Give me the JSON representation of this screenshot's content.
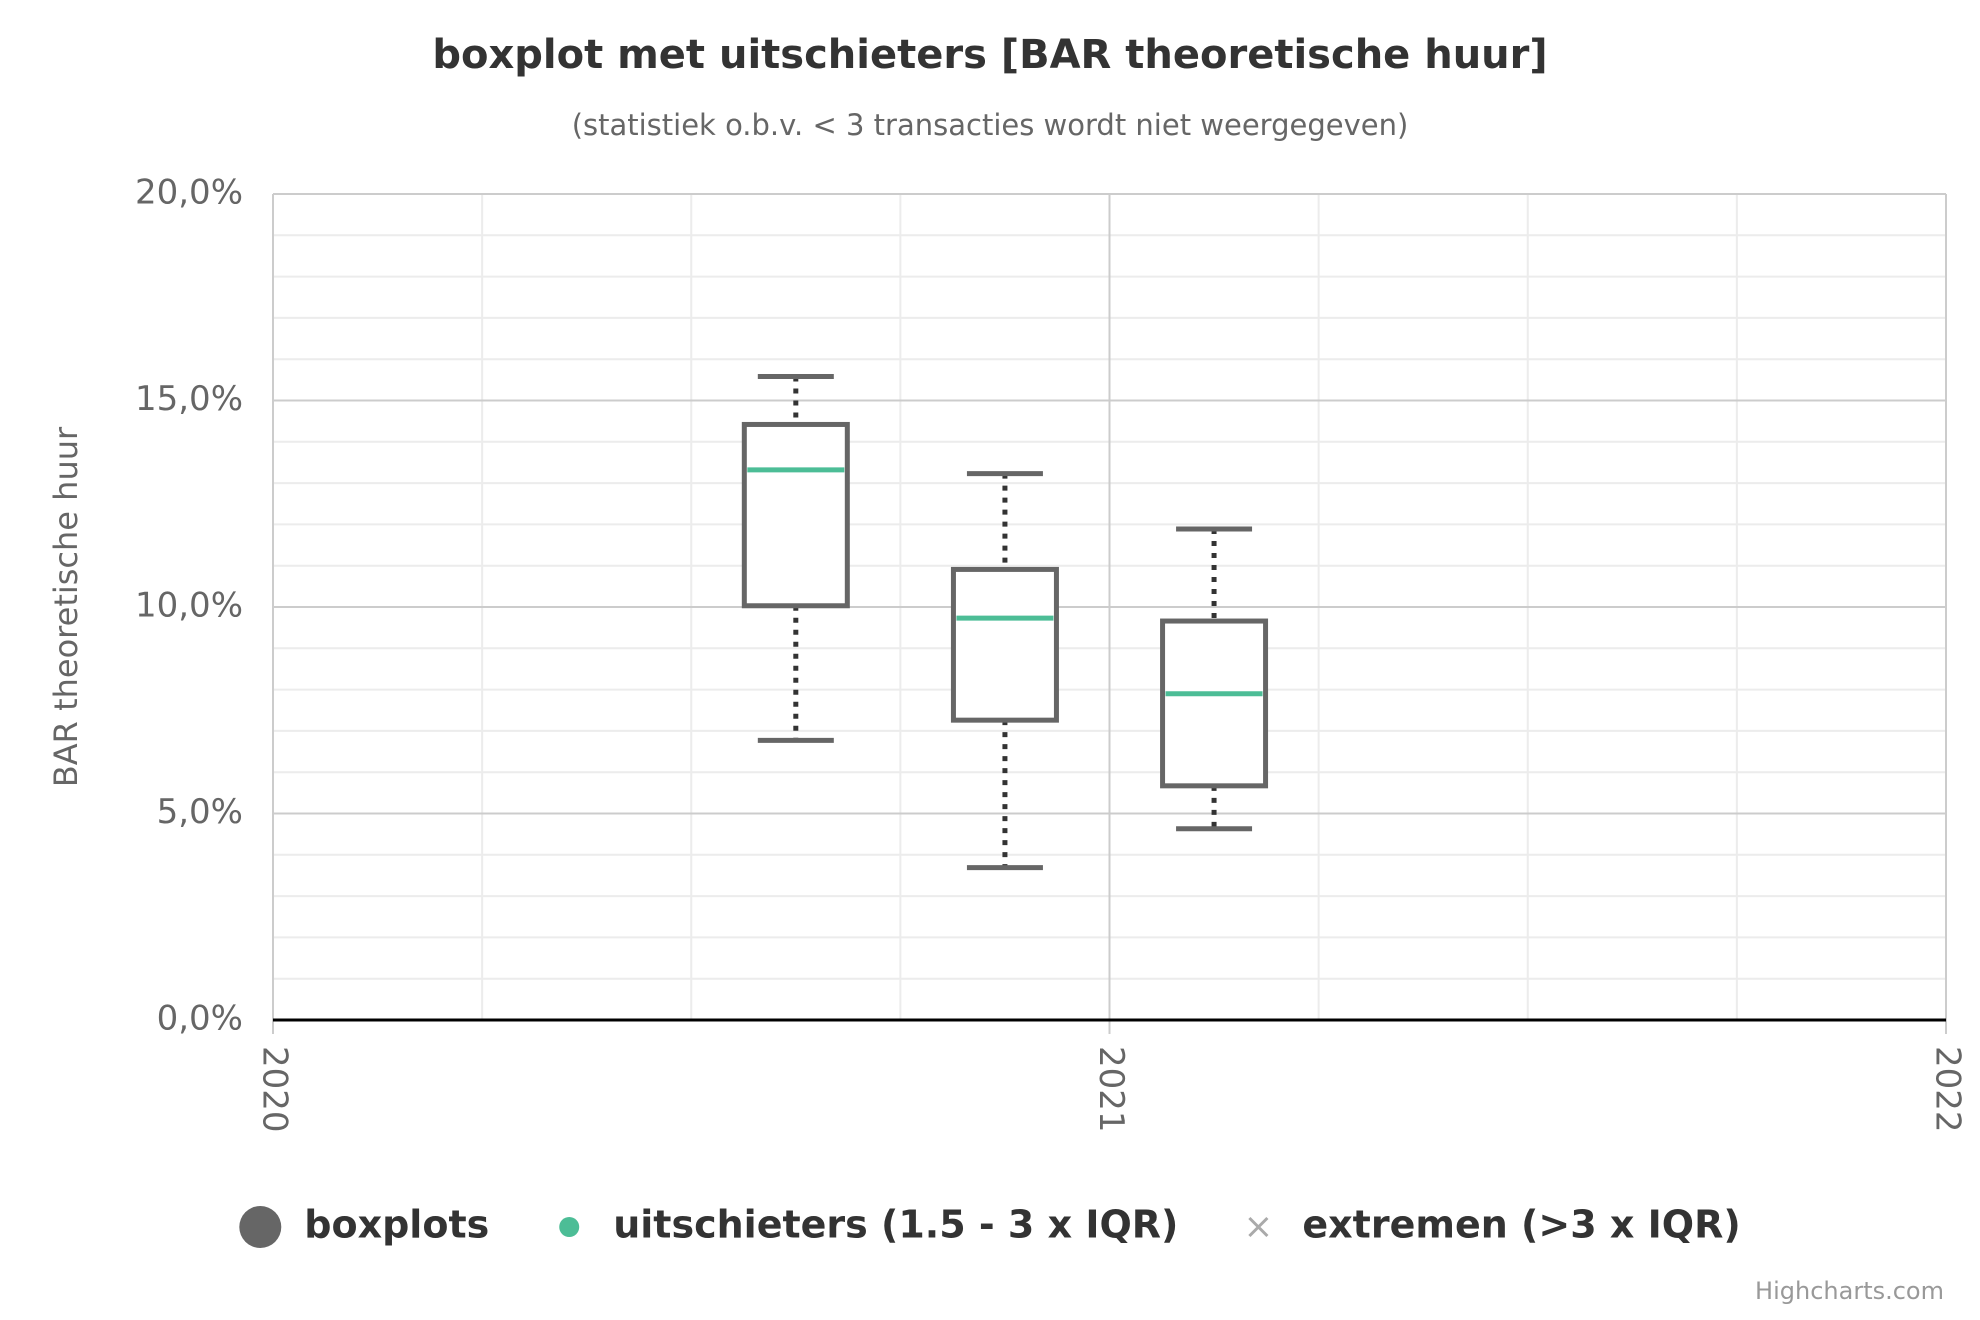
{
  "chart_data": {
    "type": "boxplot",
    "title": "boxplot met uitschieters [BAR theoretische huur]",
    "subtitle": "(statistiek o.b.v. < 3 transacties wordt niet weergegeven)",
    "y_label": "BAR theoretische huur",
    "credits": "Highcharts.com",
    "xlim": [
      2020,
      2022
    ],
    "xticks": [
      2020,
      2021,
      2022
    ],
    "xminorticks": [
      2020.25,
      2020.5,
      2020.75,
      2021.25,
      2021.5,
      2021.75
    ],
    "ylim": [
      0,
      20
    ],
    "yticks": [
      {
        "value": 0,
        "label": "0,0%"
      },
      {
        "value": 5,
        "label": "5,0%"
      },
      {
        "value": 10,
        "label": "10,0%"
      },
      {
        "value": 15,
        "label": "15,0%"
      },
      {
        "value": 20,
        "label": "20,0%"
      }
    ],
    "yminorticks": [
      1,
      2,
      3,
      4,
      6,
      7,
      8,
      9,
      11,
      12,
      13,
      14,
      16,
      17,
      18,
      19
    ],
    "grid": true,
    "legend_position": "bottom",
    "series": [
      {
        "name": "boxplots",
        "color": "#666666",
        "median_color": "#4cbd96",
        "marker": "circle",
        "x": [
          2020.625,
          2020.875,
          2021.125
        ],
        "low": [
          6.77,
          3.69,
          4.63
        ],
        "q1": [
          10.03,
          7.26,
          5.67
        ],
        "median": [
          13.32,
          9.73,
          7.9
        ],
        "q3": [
          14.42,
          10.91,
          9.66
        ],
        "high": [
          15.58,
          13.23,
          11.89
        ]
      },
      {
        "name": "uitschieters (1.5 - 3 x IQR)",
        "color": "#4cbd96",
        "marker": "circle",
        "x": [],
        "values": []
      },
      {
        "name": "extremen (>3 x IQR)",
        "color": "#aaaaaa",
        "marker": "cross",
        "x": [],
        "values": []
      }
    ]
  }
}
